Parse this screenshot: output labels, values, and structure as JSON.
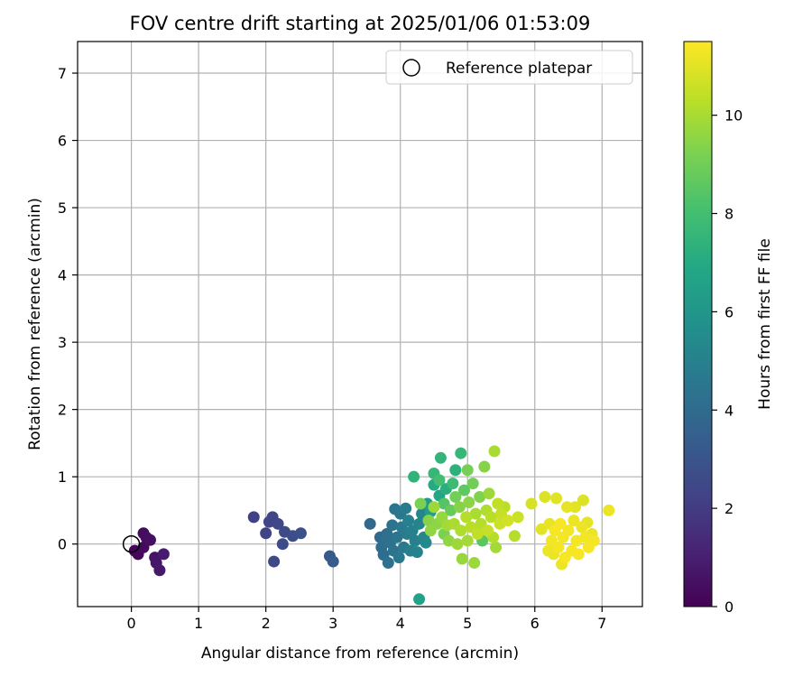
{
  "chart_data": {
    "type": "scatter",
    "title": "FOV centre drift starting at 2025/01/06 01:53:09",
    "xlabel": "Angular distance from reference (arcmin)",
    "ylabel": "Rotation from reference (arcmin)",
    "xlim": [
      -0.8,
      7.6
    ],
    "ylim": [
      -0.93,
      7.47
    ],
    "xticks": [
      0,
      1,
      2,
      3,
      4,
      5,
      6,
      7
    ],
    "yticks": [
      0,
      1,
      2,
      3,
      4,
      5,
      6,
      7
    ],
    "grid": true,
    "legend": {
      "position": "top-right",
      "entries": [
        "Reference platepar"
      ]
    },
    "reference_point": {
      "x": 0,
      "y": 0,
      "name": "Reference platepar",
      "marker": "open-circle"
    },
    "colorbar": {
      "label": "Hours from first FF file",
      "range": [
        0,
        11.5
      ],
      "ticks": [
        0,
        2,
        4,
        6,
        8,
        10
      ],
      "colormap": "viridis"
    },
    "series": [
      {
        "marker": "filled-circle",
        "color_by": "hours",
        "points": [
          {
            "x": 0.05,
            "y": -0.1,
            "c": 0.1
          },
          {
            "x": 0.1,
            "y": -0.15,
            "c": 0.2
          },
          {
            "x": 0.18,
            "y": -0.05,
            "c": 0.3
          },
          {
            "x": 0.18,
            "y": 0.16,
            "c": 0.35
          },
          {
            "x": 0.22,
            "y": 0.1,
            "c": 0.4
          },
          {
            "x": 0.28,
            "y": 0.06,
            "c": 0.5
          },
          {
            "x": 0.35,
            "y": -0.2,
            "c": 0.6
          },
          {
            "x": 0.37,
            "y": -0.28,
            "c": 0.7
          },
          {
            "x": 0.42,
            "y": -0.39,
            "c": 0.8
          },
          {
            "x": 0.48,
            "y": -0.15,
            "c": 0.9
          },
          {
            "x": 1.82,
            "y": 0.4,
            "c": 2.2
          },
          {
            "x": 2.0,
            "y": 0.16,
            "c": 2.3
          },
          {
            "x": 2.05,
            "y": 0.33,
            "c": 2.4
          },
          {
            "x": 2.1,
            "y": 0.4,
            "c": 2.4
          },
          {
            "x": 2.12,
            "y": -0.26,
            "c": 2.5
          },
          {
            "x": 2.18,
            "y": 0.3,
            "c": 2.5
          },
          {
            "x": 2.25,
            "y": 0.0,
            "c": 2.6
          },
          {
            "x": 2.28,
            "y": 0.18,
            "c": 2.6
          },
          {
            "x": 2.4,
            "y": 0.12,
            "c": 2.7
          },
          {
            "x": 2.52,
            "y": 0.16,
            "c": 2.8
          },
          {
            "x": 2.95,
            "y": -0.18,
            "c": 3.2
          },
          {
            "x": 3.0,
            "y": -0.26,
            "c": 3.3
          },
          {
            "x": 3.55,
            "y": 0.3,
            "c": 3.9
          },
          {
            "x": 3.7,
            "y": 0.1,
            "c": 4.0
          },
          {
            "x": 3.72,
            "y": -0.05,
            "c": 4.1
          },
          {
            "x": 3.75,
            "y": -0.16,
            "c": 4.1
          },
          {
            "x": 3.78,
            "y": 0.05,
            "c": 4.2
          },
          {
            "x": 3.8,
            "y": 0.15,
            "c": 4.2
          },
          {
            "x": 3.82,
            "y": -0.28,
            "c": 4.3
          },
          {
            "x": 3.85,
            "y": 0.02,
            "c": 4.3
          },
          {
            "x": 3.88,
            "y": 0.28,
            "c": 4.4
          },
          {
            "x": 3.9,
            "y": -0.1,
            "c": 4.4
          },
          {
            "x": 3.92,
            "y": 0.52,
            "c": 4.5
          },
          {
            "x": 3.95,
            "y": 0.1,
            "c": 4.5
          },
          {
            "x": 3.98,
            "y": -0.2,
            "c": 4.6
          },
          {
            "x": 4.0,
            "y": 0.45,
            "c": 4.6
          },
          {
            "x": 4.02,
            "y": 0.25,
            "c": 4.7
          },
          {
            "x": 4.05,
            "y": -0.05,
            "c": 4.7
          },
          {
            "x": 4.08,
            "y": 0.53,
            "c": 4.8
          },
          {
            "x": 4.1,
            "y": 0.15,
            "c": 4.8
          },
          {
            "x": 4.12,
            "y": 0.35,
            "c": 4.9
          },
          {
            "x": 4.15,
            "y": -0.1,
            "c": 4.9
          },
          {
            "x": 4.18,
            "y": 0.2,
            "c": 5.0
          },
          {
            "x": 4.2,
            "y": 1.0,
            "c": 7.4
          },
          {
            "x": 4.22,
            "y": 0.05,
            "c": 5.0
          },
          {
            "x": 4.25,
            "y": -0.12,
            "c": 5.1
          },
          {
            "x": 4.28,
            "y": 0.3,
            "c": 5.1
          },
          {
            "x": 4.3,
            "y": 0.6,
            "c": 9.2
          },
          {
            "x": 4.28,
            "y": -0.82,
            "c": 6.6
          },
          {
            "x": 4.32,
            "y": 0.45,
            "c": 5.2
          },
          {
            "x": 4.35,
            "y": 0.1,
            "c": 5.3
          },
          {
            "x": 4.38,
            "y": 0.02,
            "c": 5.4
          },
          {
            "x": 4.4,
            "y": 0.6,
            "c": 6.2
          },
          {
            "x": 4.42,
            "y": 0.35,
            "c": 9.4
          },
          {
            "x": 4.45,
            "y": 0.48,
            "c": 6.4
          },
          {
            "x": 4.45,
            "y": 0.2,
            "c": 9.6
          },
          {
            "x": 4.5,
            "y": 0.88,
            "c": 7.0
          },
          {
            "x": 4.5,
            "y": 0.55,
            "c": 9.8
          },
          {
            "x": 4.5,
            "y": 1.05,
            "c": 7.6
          },
          {
            "x": 4.55,
            "y": 0.3,
            "c": 9.5
          },
          {
            "x": 4.58,
            "y": 0.72,
            "c": 6.8
          },
          {
            "x": 4.58,
            "y": 0.95,
            "c": 8.0
          },
          {
            "x": 4.6,
            "y": 1.28,
            "c": 7.5
          },
          {
            "x": 4.62,
            "y": 0.4,
            "c": 9.7
          },
          {
            "x": 4.65,
            "y": 0.15,
            "c": 9.2
          },
          {
            "x": 4.65,
            "y": 0.6,
            "c": 8.4
          },
          {
            "x": 4.68,
            "y": 0.82,
            "c": 7.2
          },
          {
            "x": 4.7,
            "y": 0.28,
            "c": 9.9
          },
          {
            "x": 4.72,
            "y": 0.05,
            "c": 9.6
          },
          {
            "x": 4.75,
            "y": 0.5,
            "c": 8.8
          },
          {
            "x": 4.78,
            "y": 0.9,
            "c": 7.8
          },
          {
            "x": 4.8,
            "y": 0.3,
            "c": 10.0
          },
          {
            "x": 4.82,
            "y": 0.7,
            "c": 9.0
          },
          {
            "x": 4.82,
            "y": 1.1,
            "c": 7.3
          },
          {
            "x": 4.85,
            "y": 0.0,
            "c": 9.8
          },
          {
            "x": 4.88,
            "y": 0.55,
            "c": 9.4
          },
          {
            "x": 4.9,
            "y": 0.2,
            "c": 10.1
          },
          {
            "x": 4.9,
            "y": 1.35,
            "c": 7.6
          },
          {
            "x": 4.92,
            "y": -0.22,
            "c": 9.7
          },
          {
            "x": 4.95,
            "y": 0.8,
            "c": 8.6
          },
          {
            "x": 4.98,
            "y": 0.4,
            "c": 10.2
          },
          {
            "x": 5.0,
            "y": 1.1,
            "c": 9.1
          },
          {
            "x": 5.0,
            "y": 0.05,
            "c": 9.9
          },
          {
            "x": 5.02,
            "y": 0.62,
            "c": 9.5
          },
          {
            "x": 5.05,
            "y": 0.25,
            "c": 10.3
          },
          {
            "x": 5.08,
            "y": 0.9,
            "c": 9.0
          },
          {
            "x": 5.1,
            "y": -0.28,
            "c": 9.8
          },
          {
            "x": 5.12,
            "y": 0.45,
            "c": 10.0
          },
          {
            "x": 5.15,
            "y": 0.15,
            "c": 10.4
          },
          {
            "x": 5.18,
            "y": 0.7,
            "c": 9.3
          },
          {
            "x": 5.2,
            "y": 0.3,
            "c": 10.2
          },
          {
            "x": 5.22,
            "y": 0.05,
            "c": 8.5
          },
          {
            "x": 5.25,
            "y": 1.15,
            "c": 9.4
          },
          {
            "x": 5.28,
            "y": 0.5,
            "c": 10.1
          },
          {
            "x": 5.3,
            "y": 0.2,
            "c": 10.5
          },
          {
            "x": 5.32,
            "y": 0.75,
            "c": 9.8
          },
          {
            "x": 5.35,
            "y": 0.4,
            "c": 10.3
          },
          {
            "x": 5.38,
            "y": 0.1,
            "c": 10.2
          },
          {
            "x": 5.4,
            "y": 1.38,
            "c": 10.0
          },
          {
            "x": 5.42,
            "y": -0.05,
            "c": 9.9
          },
          {
            "x": 5.45,
            "y": 0.6,
            "c": 10.4
          },
          {
            "x": 5.48,
            "y": 0.3,
            "c": 10.6
          },
          {
            "x": 5.5,
            "y": 0.45,
            "c": 10.5
          },
          {
            "x": 5.55,
            "y": 0.55,
            "c": 10.3
          },
          {
            "x": 5.6,
            "y": 0.35,
            "c": 10.7
          },
          {
            "x": 5.7,
            "y": 0.12,
            "c": 10.2
          },
          {
            "x": 5.75,
            "y": 0.4,
            "c": 10.6
          },
          {
            "x": 5.95,
            "y": 0.6,
            "c": 10.8
          },
          {
            "x": 6.1,
            "y": 0.22,
            "c": 11.0
          },
          {
            "x": 6.15,
            "y": 0.7,
            "c": 10.9
          },
          {
            "x": 6.2,
            "y": -0.1,
            "c": 11.2
          },
          {
            "x": 6.22,
            "y": 0.3,
            "c": 11.1
          },
          {
            "x": 6.25,
            "y": 0.05,
            "c": 11.3
          },
          {
            "x": 6.28,
            "y": -0.15,
            "c": 11.2
          },
          {
            "x": 6.3,
            "y": 0.2,
            "c": 11.4
          },
          {
            "x": 6.32,
            "y": 0.68,
            "c": 11.0
          },
          {
            "x": 6.35,
            "y": -0.05,
            "c": 11.3
          },
          {
            "x": 6.38,
            "y": 0.3,
            "c": 11.4
          },
          {
            "x": 6.4,
            "y": -0.3,
            "c": 11.2
          },
          {
            "x": 6.42,
            "y": 0.1,
            "c": 11.3
          },
          {
            "x": 6.45,
            "y": -0.2,
            "c": 11.4
          },
          {
            "x": 6.48,
            "y": 0.55,
            "c": 11.1
          },
          {
            "x": 6.5,
            "y": 0.2,
            "c": 11.3
          },
          {
            "x": 6.55,
            "y": -0.1,
            "c": 11.4
          },
          {
            "x": 6.58,
            "y": 0.35,
            "c": 11.2
          },
          {
            "x": 6.6,
            "y": 0.55,
            "c": 11.0
          },
          {
            "x": 6.62,
            "y": 0.05,
            "c": 11.3
          },
          {
            "x": 6.65,
            "y": -0.15,
            "c": 11.4
          },
          {
            "x": 6.7,
            "y": 0.25,
            "c": 11.2
          },
          {
            "x": 6.72,
            "y": 0.65,
            "c": 10.9
          },
          {
            "x": 6.75,
            "y": 0.1,
            "c": 11.3
          },
          {
            "x": 6.78,
            "y": 0.32,
            "c": 11.1
          },
          {
            "x": 6.8,
            "y": -0.05,
            "c": 11.4
          },
          {
            "x": 6.85,
            "y": 0.15,
            "c": 11.2
          },
          {
            "x": 6.88,
            "y": 0.05,
            "c": 11.3
          },
          {
            "x": 7.1,
            "y": 0.5,
            "c": 11.2
          }
        ]
      }
    ]
  }
}
